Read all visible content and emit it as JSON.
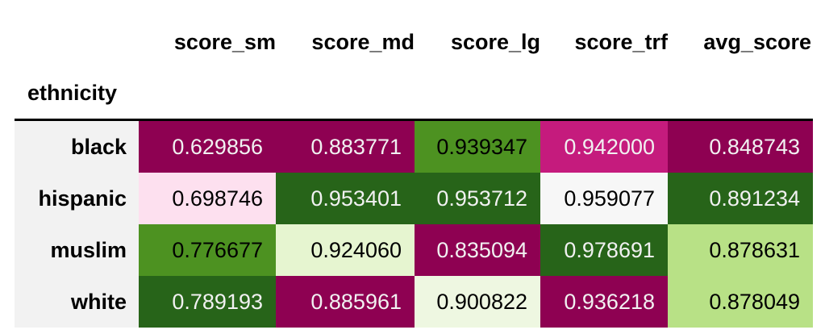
{
  "table": {
    "index_name": "ethnicity",
    "columns": [
      "score_sm",
      "score_md",
      "score_lg",
      "score_trf",
      "avg_score"
    ],
    "rows": [
      {
        "label": "black",
        "values": [
          "0.629856",
          "0.883771",
          "0.939347",
          "0.942000",
          "0.848743"
        ],
        "bg": [
          "#8e0152",
          "#8e0152",
          "#4d9221",
          "#c51b7d",
          "#8e0152"
        ],
        "fg": [
          "#f1f1f1",
          "#f1f1f1",
          "#000000",
          "#f1f1f1",
          "#f1f1f1"
        ]
      },
      {
        "label": "hispanic",
        "values": [
          "0.698746",
          "0.953401",
          "0.953712",
          "0.959077",
          "0.891234"
        ],
        "bg": [
          "#fde0ef",
          "#276419",
          "#276419",
          "#f7f7f7",
          "#276419"
        ],
        "fg": [
          "#000000",
          "#f1f1f1",
          "#f1f1f1",
          "#000000",
          "#f1f1f1"
        ]
      },
      {
        "label": "muslim",
        "values": [
          "0.776677",
          "0.924060",
          "0.835094",
          "0.978691",
          "0.878631"
        ],
        "bg": [
          "#4d9221",
          "#e6f5d0",
          "#8e0152",
          "#276419",
          "#b8e186"
        ],
        "fg": [
          "#000000",
          "#000000",
          "#f1f1f1",
          "#f1f1f1",
          "#000000"
        ]
      },
      {
        "label": "white",
        "values": [
          "0.789193",
          "0.885961",
          "0.900822",
          "0.936218",
          "0.878049"
        ],
        "bg": [
          "#276419",
          "#8e0152",
          "#eef7e1",
          "#8e0152",
          "#b8e186"
        ],
        "fg": [
          "#f1f1f1",
          "#f1f1f1",
          "#000000",
          "#f1f1f1",
          "#000000"
        ]
      }
    ]
  }
}
